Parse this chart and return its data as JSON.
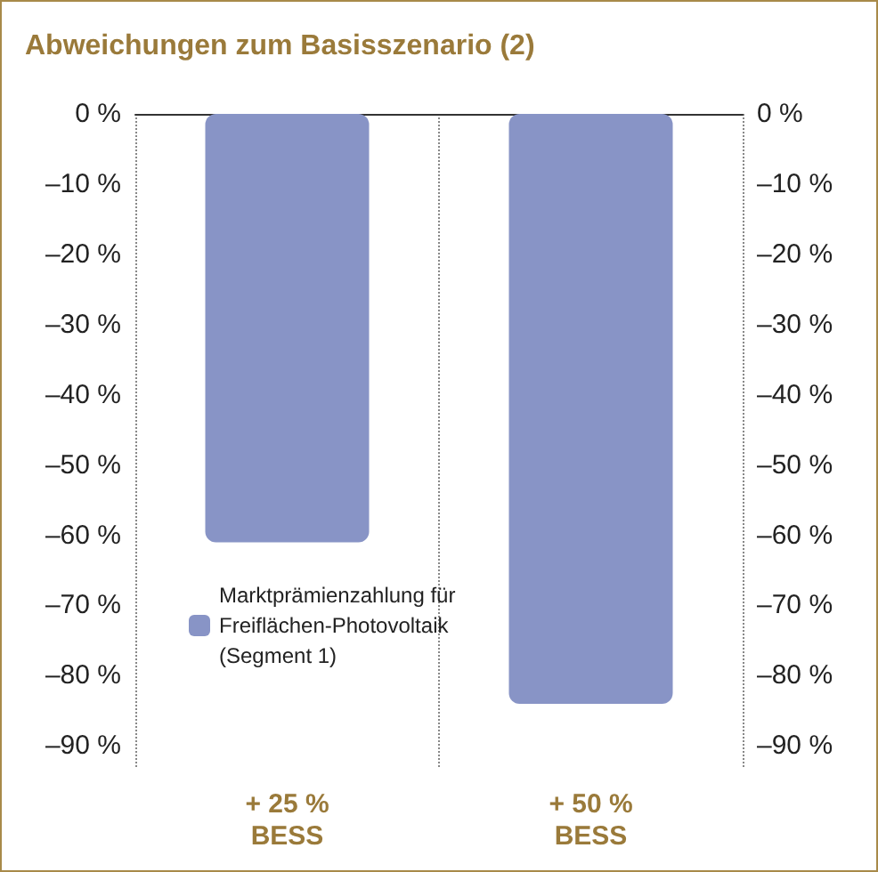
{
  "chart_data": {
    "type": "bar",
    "title": "Abweichungen zum Basisszenario (2)",
    "categories": [
      "+ 25 %\nBESS",
      "+ 50 %\nBESS"
    ],
    "series": [
      {
        "name": "Marktprämienzahlung für\nFreiflächen-Photovoltaik\n(Segment 1)",
        "color": "#8894c6",
        "values": [
          -61,
          -84
        ]
      }
    ],
    "ylim": [
      -93,
      0
    ],
    "yticks": [
      {
        "value": 0,
        "label": "0 %"
      },
      {
        "value": -10,
        "label": "–10 %"
      },
      {
        "value": -20,
        "label": "–20 %"
      },
      {
        "value": -30,
        "label": "–30 %"
      },
      {
        "value": -40,
        "label": "–40 %"
      },
      {
        "value": -50,
        "label": "–50 %"
      },
      {
        "value": -60,
        "label": "–60 %"
      },
      {
        "value": -70,
        "label": "–70 %"
      },
      {
        "value": -80,
        "label": "–80 %"
      },
      {
        "value": -90,
        "label": "–90 %"
      }
    ],
    "y2lim": [
      -93,
      0
    ],
    "y2ticks": [
      {
        "value": 0,
        "label": "0 %"
      },
      {
        "value": -10,
        "label": "–10 %"
      },
      {
        "value": -20,
        "label": "–20 %"
      },
      {
        "value": -30,
        "label": "–30 %"
      },
      {
        "value": -40,
        "label": "–40 %"
      },
      {
        "value": -50,
        "label": "–50 %"
      },
      {
        "value": -60,
        "label": "–60 %"
      },
      {
        "value": -70,
        "label": "–70 %"
      },
      {
        "value": -80,
        "label": "–80 %"
      },
      {
        "value": -90,
        "label": "–90 %"
      }
    ],
    "grid": "x",
    "legend": "left"
  }
}
